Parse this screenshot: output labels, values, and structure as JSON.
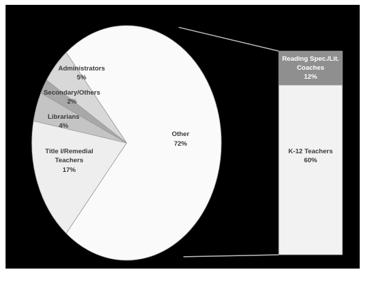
{
  "chart_data": {
    "type": "pie",
    "subtype": "pie-of-bar",
    "title": "",
    "background": "#000000",
    "slices": [
      {
        "label": "Other",
        "value": 72,
        "value_label": "72%",
        "color": "#fafafa"
      },
      {
        "label": "Title I/Remedial Teachers",
        "line1": "Title I/Remedial",
        "line2": "Teachers",
        "value": 17,
        "value_label": "17%",
        "color": "#eeeeee"
      },
      {
        "label": "Librarians",
        "value": 4,
        "value_label": "4%",
        "color": "#c4c4c4"
      },
      {
        "label": "Secondary/Others",
        "value": 2,
        "value_label": "2%",
        "color": "#a8a8a8"
      },
      {
        "label": "Administrators",
        "value": 5,
        "value_label": "5%",
        "color": "#d8d8d8"
      }
    ],
    "breakdown_bar": {
      "of_slice": "Other",
      "segments": [
        {
          "label": "Reading Spec./Lit. Coaches",
          "line1": "Reading Spec./Lit.",
          "line2": "Coaches",
          "value": 12,
          "value_label": "12%",
          "color": "#8f8f8f"
        },
        {
          "label": "K-12 Teachers",
          "value": 60,
          "value_label": "60%",
          "color": "#f2f2f2"
        }
      ]
    }
  }
}
